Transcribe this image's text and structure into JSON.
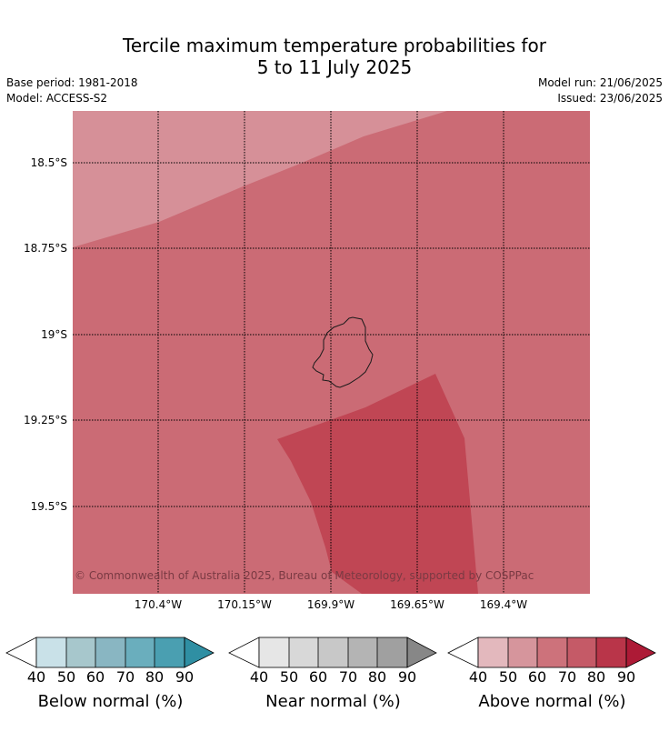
{
  "title_line1": "Tercile maximum temperature probabilities for",
  "title_line2": "5 to 11 July 2025",
  "base_period": "Base period: 1981-2018",
  "model": "Model: ACCESS-S2",
  "model_run": "Model run: 21/06/2025",
  "issued": "Issued: 23/06/2025",
  "credit": "© Commonwealth of Australia 2025, Bureau of Meteorology, supported by COSPPac",
  "lat_labels": [
    "18.5°S",
    "18.75°S",
    "19°S",
    "19.25°S",
    "19.5°S"
  ],
  "lon_labels": [
    "170.4°W",
    "170.15°W",
    "169.9°W",
    "169.65°W",
    "169.4°W"
  ],
  "regions": [
    {
      "category": "above",
      "range": "50-60",
      "color": "#d69098"
    },
    {
      "category": "above",
      "range": "60-70",
      "color": "#cb6b75"
    },
    {
      "category": "above",
      "range": "70-80",
      "color": "#c04654"
    }
  ],
  "colorbars": [
    {
      "name": "below",
      "caption": "Below normal (%)",
      "ticks": [
        "40",
        "50",
        "60",
        "70",
        "80",
        "90"
      ],
      "colors": [
        "#ffffff",
        "#c9e1e8",
        "#a7c7cc",
        "#89b6c2",
        "#6aaebd",
        "#4a9fb1",
        "#2f8fa3"
      ]
    },
    {
      "name": "near",
      "caption": "Near normal (%)",
      "ticks": [
        "40",
        "50",
        "60",
        "70",
        "80",
        "90"
      ],
      "colors": [
        "#ffffff",
        "#e6e6e6",
        "#d8d8d8",
        "#c8c8c8",
        "#b4b4b4",
        "#a0a0a0",
        "#878787"
      ]
    },
    {
      "name": "above",
      "caption": "Above normal (%)",
      "ticks": [
        "40",
        "50",
        "60",
        "70",
        "80",
        "90"
      ],
      "colors": [
        "#ffffff",
        "#e3b8bd",
        "#d6959c",
        "#cd727b",
        "#c55a67",
        "#b93549",
        "#ad1a36"
      ]
    }
  ]
}
